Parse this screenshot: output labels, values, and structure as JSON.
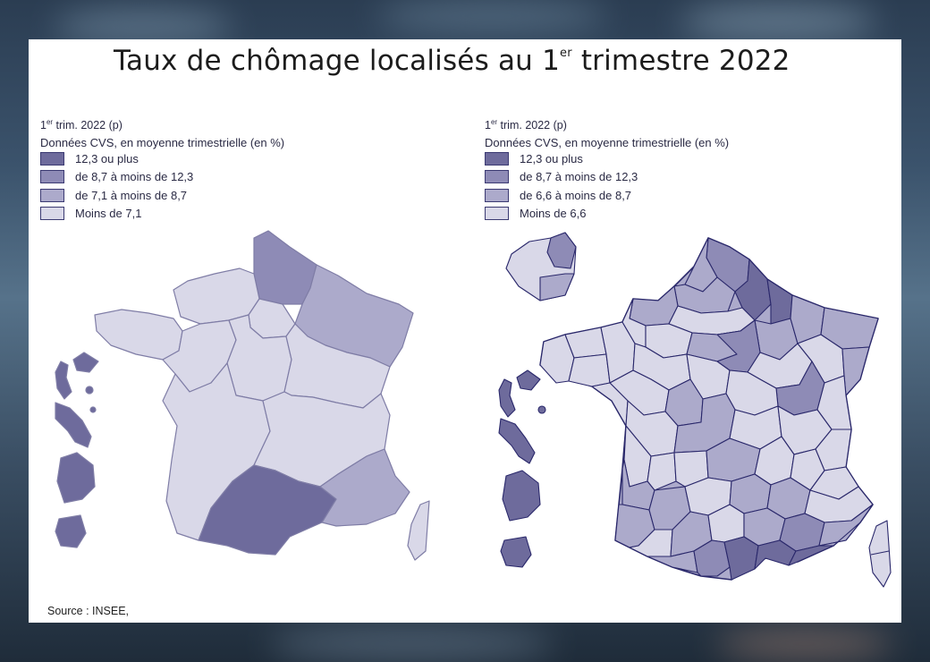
{
  "title": {
    "main": "Taux de chômage localisés au 1",
    "sup": "er",
    "rest": " trimestre 2022"
  },
  "colors": {
    "class1": "#6e6b9c",
    "class2": "#8e8bb6",
    "class3": "#acaacb",
    "class4": "#d9d8e8",
    "stroke_left": "#7f7da6",
    "stroke_right": "#2a286b"
  },
  "maps": [
    {
      "period": "1",
      "period_sup": "er",
      "period_rest": " trim. 2022 (p)",
      "subtitle": "Données CVS, en moyenne trimestrielle (en %)",
      "legend": [
        "12,3 ou plus",
        "de 8,7 à moins de 12,3",
        "de 7,1 à moins de 8,7",
        "Moins de 7,1"
      ]
    },
    {
      "period": "1",
      "period_sup": "er",
      "period_rest": " trim. 2022 (p)",
      "subtitle": "Données CVS, en moyenne trimestrielle (en %)",
      "legend": [
        "12,3 ou plus",
        "de 8,7 à moins de 12,3",
        "de 6,6 à moins de 8,7",
        "Moins de 6,6"
      ]
    }
  ],
  "source": "Source : INSEE, "
}
